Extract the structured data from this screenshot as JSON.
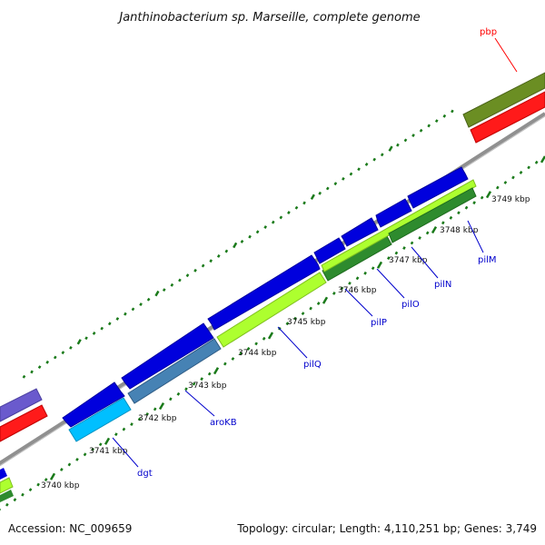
{
  "header": {
    "title": "Janthinobacterium sp. Marseille, complete genome"
  },
  "footer": {
    "accession": "Accession: NC_009659",
    "stats": "Topology: circular; Length: 4,110,251 bp; Genes: 3,749"
  },
  "ruler": {
    "unit": "kbp",
    "labels": [
      "3740 kbp",
      "3741 kbp",
      "3742 kbp",
      "3743 kbp",
      "3744 kbp",
      "3745 kbp",
      "3746 kbp",
      "3747 kbp",
      "3748 kbp",
      "3749 kbp"
    ]
  },
  "genes": [
    {
      "name": "pbp",
      "color": "#ff0000"
    },
    {
      "name": "pilM",
      "color": "#0000cc"
    },
    {
      "name": "pilN",
      "color": "#0000cc"
    },
    {
      "name": "pilO",
      "color": "#0000cc"
    },
    {
      "name": "pilP",
      "color": "#0000cc"
    },
    {
      "name": "pilQ",
      "color": "#0000cc"
    },
    {
      "name": "aroKB",
      "color": "#0000cc"
    },
    {
      "name": "dgt",
      "color": "#0000cc"
    }
  ],
  "colors": {
    "backbone": "#8a8a8a",
    "tick": "#1a7a1a",
    "cds_forward": "#0000dd",
    "cds_red": "#ff0000",
    "cog_olive": "#6b8e23",
    "cog_lime": "#adff2f",
    "cog_green": "#2e8b2e",
    "cog_steel": "#4682b4",
    "cog_cyan": "#00bfff",
    "cog_purple": "#6a5acd"
  }
}
